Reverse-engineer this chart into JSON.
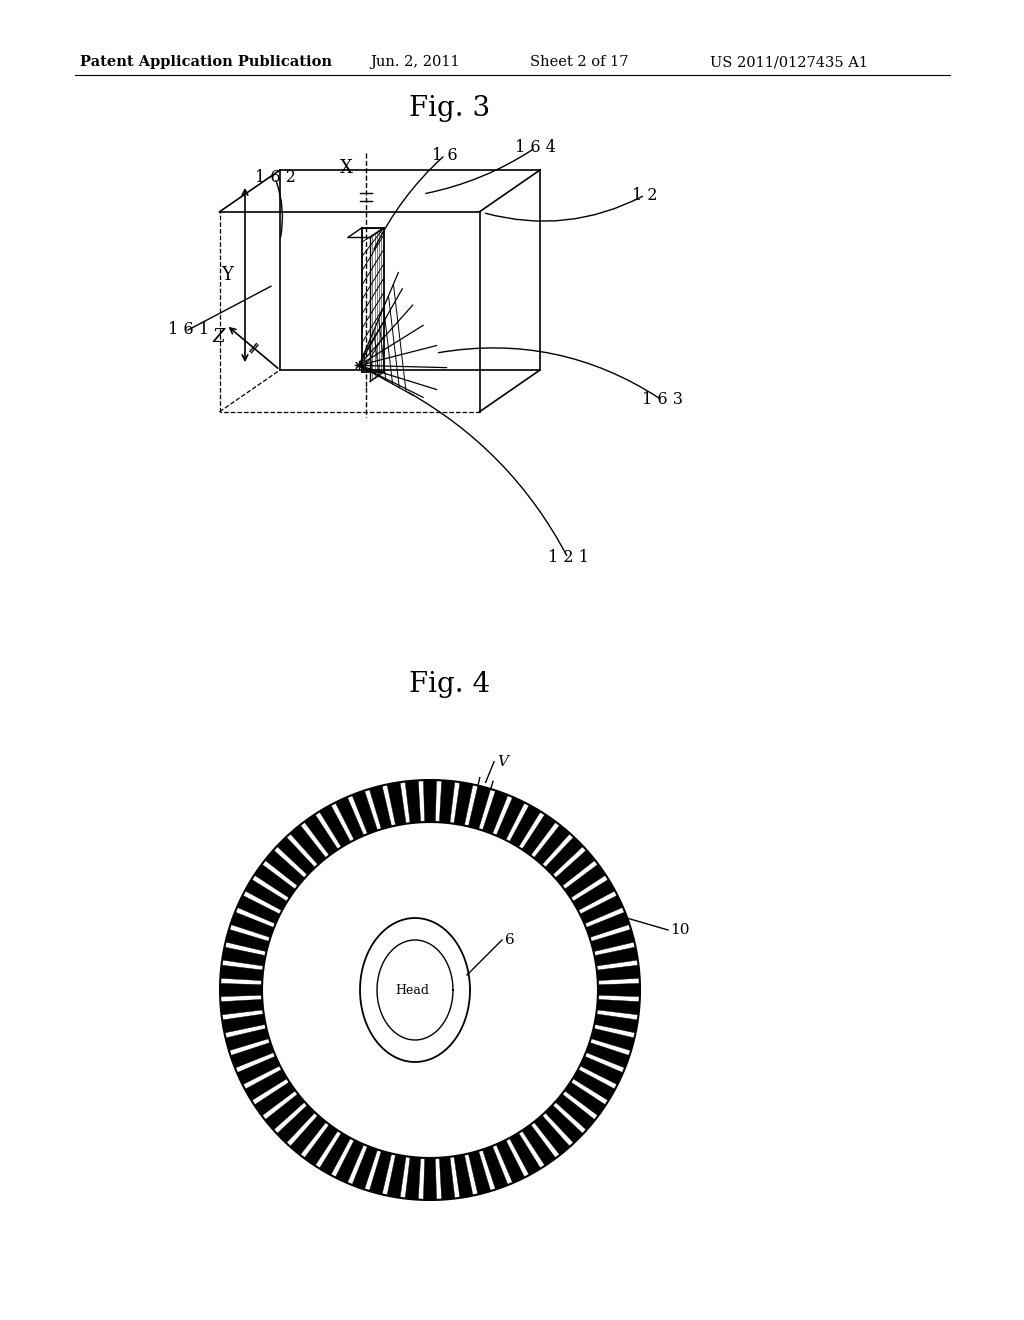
{
  "background_color": "#ffffff",
  "header_text": "Patent Application Publication",
  "header_date": "Jun. 2, 2011",
  "header_sheet": "Sheet 2 of 17",
  "header_patent": "US 2011/0127435 A1",
  "fig3_title": "Fig. 3",
  "fig4_title": "Fig. 4",
  "text_color": "#000000",
  "line_color": "#000000"
}
